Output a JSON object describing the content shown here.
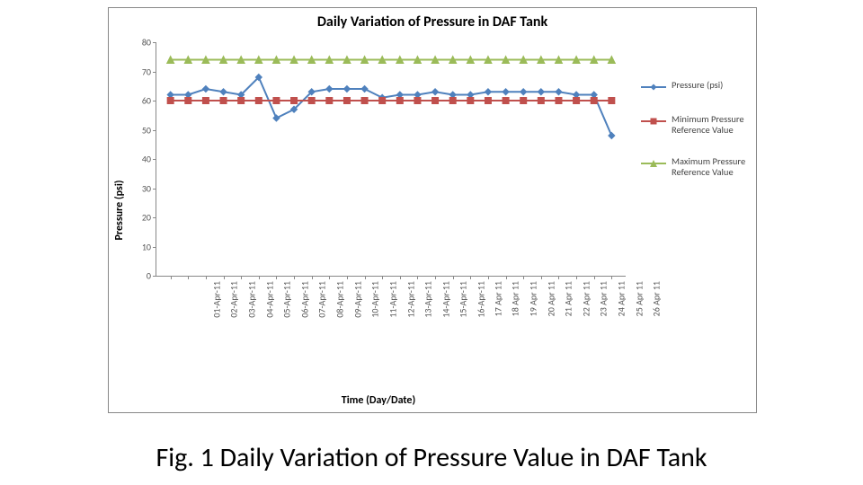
{
  "caption": "Fig. 1 Daily Variation of Pressure Value in DAF Tank",
  "chart": {
    "type": "line",
    "title": "Daily Variation of Pressure in DAF Tank",
    "title_fontsize": 16,
    "title_weight": "bold",
    "yaxis_title": "Pressure (psi)",
    "xaxis_title": "Time (Day/Date)",
    "axis_title_fontsize": 12,
    "axis_title_weight": "bold",
    "tick_fontsize": 10,
    "background_color": "#ffffff",
    "border_color": "#888888",
    "ylim": [
      0,
      80
    ],
    "ytick_step": 10,
    "categories": [
      "01-Apr-11",
      "02-Apr-11",
      "03-Apr-11",
      "04-Apr-11",
      "05-Apr-11",
      "06-Apr-11",
      "07-Apr-11",
      "08-Apr-11",
      "09-Apr-11",
      "10-Apr-11",
      "11-Apr-11",
      "12-Apr-11",
      "13-Apr-11",
      "14-Apr-11",
      "15-Apr-11",
      "16-Apr-11",
      "17 Apr 11",
      "18 Apr 11",
      "19 Apr 11",
      "20 Apr 11",
      "21 Apr 11",
      "22 Apr 11",
      "23 Apr 11",
      "24 Apr 11",
      "25 Apr 11",
      "26 Apr 11"
    ],
    "series": [
      {
        "name": "Pressure (psi)",
        "color": "#4f81bd",
        "line_width": 2,
        "marker": "diamond",
        "marker_size": 7,
        "values": [
          62,
          62,
          64,
          63,
          62,
          68,
          54,
          57,
          63,
          64,
          64,
          64,
          61,
          62,
          62,
          63,
          62,
          62,
          63,
          63,
          63,
          63,
          63,
          62,
          62,
          48
        ]
      },
      {
        "name": "Minimum Pressure Reference Value",
        "color": "#c0504d",
        "line_width": 2,
        "marker": "square",
        "marker_size": 7,
        "values": [
          60,
          60,
          60,
          60,
          60,
          60,
          60,
          60,
          60,
          60,
          60,
          60,
          60,
          60,
          60,
          60,
          60,
          60,
          60,
          60,
          60,
          60,
          60,
          60,
          60,
          60
        ]
      },
      {
        "name": "Maximum Pressure Reference Value",
        "color": "#9bbb59",
        "line_width": 2,
        "marker": "triangle",
        "marker_size": 8,
        "values": [
          74,
          74,
          74,
          74,
          74,
          74,
          74,
          74,
          74,
          74,
          74,
          74,
          74,
          74,
          74,
          74,
          74,
          74,
          74,
          74,
          74,
          74,
          74,
          74,
          74,
          74
        ]
      }
    ]
  }
}
